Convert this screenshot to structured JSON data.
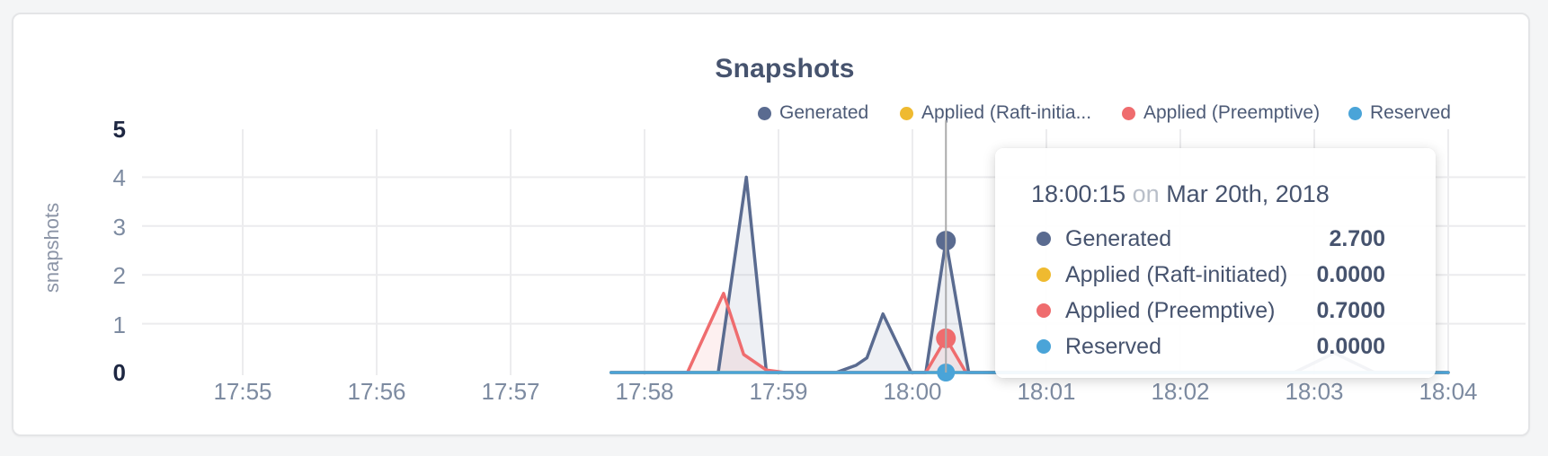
{
  "card": {
    "title": "Snapshots"
  },
  "chart": {
    "title": "Snapshots",
    "y_axis": {
      "label": "snapshots",
      "ticks": [
        "5",
        "4",
        "3",
        "2",
        "1",
        "0"
      ]
    },
    "x_axis": {
      "ticks": [
        "17:55",
        "17:56",
        "17:57",
        "17:58",
        "17:59",
        "18:00",
        "18:01",
        "18:02",
        "18:03",
        "18:04"
      ]
    },
    "legend": [
      {
        "label": "Generated",
        "color": "#5a6b90"
      },
      {
        "label": "Applied (Raft-initia...",
        "color": "#efba30"
      },
      {
        "label": "Applied (Preemptive)",
        "color": "#ef6c6e"
      },
      {
        "label": "Reserved",
        "color": "#4aa4d8"
      }
    ]
  },
  "tooltip": {
    "time": "18:00:15",
    "on_word": "on",
    "date": "Mar 20th, 2018",
    "rows": [
      {
        "label": "Generated",
        "value": "2.700",
        "color": "#5a6b90"
      },
      {
        "label": "Applied (Raft-initiated)",
        "value": "0.0000",
        "color": "#efba30"
      },
      {
        "label": "Applied (Preemptive)",
        "value": "0.7000",
        "color": "#ef6c6e"
      },
      {
        "label": "Reserved",
        "value": "0.0000",
        "color": "#4aa4d8"
      }
    ]
  },
  "chart_data": {
    "type": "area",
    "title": "Snapshots",
    "xlabel": "",
    "ylabel": "snapshots",
    "ylim": [
      0,
      5
    ],
    "y_ticks": [
      0,
      1,
      2,
      3,
      4,
      5
    ],
    "x_tick_labels": [
      "17:55",
      "17:56",
      "17:57",
      "17:58",
      "17:59",
      "18:00",
      "18:01",
      "18:02",
      "18:03",
      "18:04"
    ],
    "x_unit": "minutes after 17:55",
    "x_domain": [
      0,
      9
    ],
    "grid": {
      "horizontal": [
        1,
        2,
        3,
        4
      ],
      "vertical_every_minute": true
    },
    "legend_position": "top-right",
    "hover": {
      "t": 5.25,
      "time": "18:00:15",
      "date": "Mar 20th, 2018",
      "values": {
        "Generated": 2.7,
        "Applied (Raft-initiated)": 0.0,
        "Applied (Preemptive)": 0.7,
        "Reserved": 0.0
      }
    },
    "series": [
      {
        "name": "Generated",
        "color": "#5a6b90",
        "fill": "rgba(90,107,144,0.10)",
        "points": [
          [
            2.75,
            0
          ],
          [
            3.55,
            0
          ],
          [
            3.76,
            4.0
          ],
          [
            3.91,
            0
          ],
          [
            4.43,
            0
          ],
          [
            4.58,
            0.15
          ],
          [
            4.66,
            0.3
          ],
          [
            4.78,
            1.2
          ],
          [
            4.99,
            0
          ],
          [
            5.1,
            0
          ],
          [
            5.25,
            2.7
          ],
          [
            5.42,
            0
          ],
          [
            7.85,
            0
          ],
          [
            8.15,
            0.4
          ],
          [
            8.45,
            0
          ],
          [
            9.0,
            0
          ]
        ]
      },
      {
        "name": "Applied (Raft-initiated)",
        "color": "#efba30",
        "fill": "none",
        "points": [
          [
            2.75,
            0
          ],
          [
            9.0,
            0
          ]
        ]
      },
      {
        "name": "Applied (Preemptive)",
        "color": "#ef6c6e",
        "fill": "rgba(239,108,110,0.10)",
        "points": [
          [
            2.75,
            0
          ],
          [
            3.32,
            0
          ],
          [
            3.59,
            1.62
          ],
          [
            3.74,
            0.37
          ],
          [
            3.91,
            0.05
          ],
          [
            4.05,
            0
          ],
          [
            5.1,
            0
          ],
          [
            5.25,
            0.7
          ],
          [
            5.4,
            0
          ],
          [
            9.0,
            0
          ]
        ]
      },
      {
        "name": "Reserved",
        "color": "#4aa4d8",
        "fill": "none",
        "points": [
          [
            2.75,
            0
          ],
          [
            9.0,
            0
          ]
        ]
      }
    ],
    "markers": [
      {
        "series": "Applied (Raft-initiated)",
        "t": 5.25,
        "v": 0,
        "r": 9,
        "color": "#efba30"
      },
      {
        "series": "Reserved",
        "t": 5.25,
        "v": 0,
        "r": 10,
        "color": "#4aa4d8"
      },
      {
        "series": "Applied (Preemptive)",
        "t": 5.25,
        "v": 0.7,
        "r": 11,
        "color": "#ef6c6e"
      },
      {
        "series": "Generated",
        "t": 5.25,
        "v": 2.7,
        "r": 11,
        "color": "#5a6b90"
      }
    ]
  }
}
